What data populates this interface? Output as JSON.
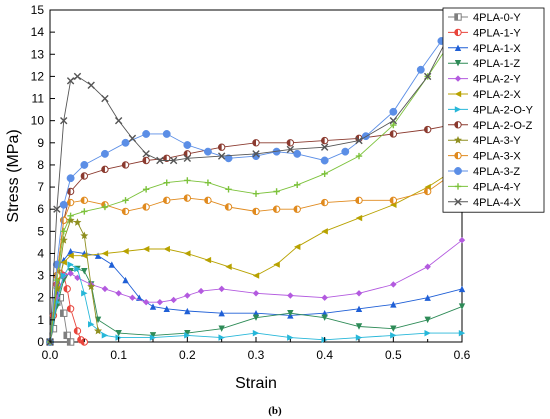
{
  "chart_data": {
    "type": "line",
    "xlabel": "Strain",
    "ylabel": "Stress (MPa)",
    "caption": "(b)",
    "xlim": [
      0,
      0.6
    ],
    "ylim": [
      0,
      15
    ],
    "xticks": [
      0.0,
      0.1,
      0.2,
      0.3,
      0.4,
      0.5,
      0.6
    ],
    "xtick_labels": [
      "0.0",
      "0.1",
      "0.2",
      "0.3",
      "0.4",
      "0.5",
      "0.6"
    ],
    "yticks": [
      0,
      1,
      2,
      3,
      4,
      5,
      6,
      7,
      8,
      9,
      10,
      11,
      12,
      13,
      14,
      15
    ],
    "ytick_labels": [
      "0",
      "1",
      "2",
      "3",
      "4",
      "5",
      "6",
      "7",
      "8",
      "9",
      "10",
      "11",
      "12",
      "13",
      "14",
      "15"
    ],
    "grid": false,
    "legend_position": "top-right",
    "series": [
      {
        "name": "4PLA-0-Y",
        "color": "#7f7f7f",
        "marker": "square-half",
        "x": [
          0,
          0.005,
          0.01,
          0.015,
          0.02,
          0.025,
          0.03
        ],
        "y": [
          0,
          0.6,
          1.8,
          2.0,
          1.3,
          0.3,
          0
        ]
      },
      {
        "name": "4PLA-1-Y",
        "color": "#e8453c",
        "marker": "circle-half",
        "x": [
          0,
          0.005,
          0.01,
          0.015,
          0.02,
          0.025,
          0.03,
          0.04,
          0.045,
          0.05
        ],
        "y": [
          0,
          1.2,
          2.6,
          3.1,
          3.0,
          2.4,
          1.5,
          0.5,
          0.1,
          0
        ]
      },
      {
        "name": "4PLA-1-X",
        "color": "#1f5fd6",
        "marker": "triangle-up",
        "x": [
          0,
          0.01,
          0.02,
          0.03,
          0.05,
          0.07,
          0.09,
          0.11,
          0.13,
          0.15,
          0.17,
          0.2,
          0.25,
          0.3,
          0.35,
          0.4,
          0.45,
          0.5,
          0.55,
          0.6
        ],
        "y": [
          0,
          2.2,
          3.7,
          4.1,
          4.0,
          3.9,
          3.5,
          2.8,
          2.0,
          1.6,
          1.5,
          1.4,
          1.3,
          1.3,
          1.2,
          1.3,
          1.5,
          1.7,
          2.0,
          2.4
        ]
      },
      {
        "name": "4PLA-1-Z",
        "color": "#2e8b57",
        "marker": "triangle-down",
        "x": [
          0,
          0.01,
          0.02,
          0.03,
          0.04,
          0.05,
          0.06,
          0.07,
          0.1,
          0.15,
          0.2,
          0.25,
          0.3,
          0.35,
          0.4,
          0.45,
          0.5,
          0.55,
          0.6
        ],
        "y": [
          0,
          1.6,
          2.8,
          3.2,
          3.3,
          3.2,
          2.6,
          1.0,
          0.4,
          0.3,
          0.4,
          0.6,
          1.1,
          1.3,
          1.1,
          0.7,
          0.6,
          1.0,
          1.6
        ]
      },
      {
        "name": "4PLA-2-Y",
        "color": "#b35adf",
        "marker": "diamond",
        "x": [
          0,
          0.01,
          0.02,
          0.03,
          0.04,
          0.06,
          0.08,
          0.1,
          0.12,
          0.14,
          0.16,
          0.18,
          0.2,
          0.22,
          0.25,
          0.3,
          0.35,
          0.4,
          0.45,
          0.5,
          0.55,
          0.6
        ],
        "y": [
          0,
          2.0,
          3.0,
          3.1,
          2.9,
          2.6,
          2.4,
          2.2,
          2.0,
          1.8,
          1.8,
          1.9,
          2.1,
          2.3,
          2.4,
          2.2,
          2.1,
          2.0,
          2.2,
          2.6,
          3.4,
          4.6
        ]
      },
      {
        "name": "4PLA-2-X",
        "color": "#b8a200",
        "marker": "triangle-left",
        "x": [
          0,
          0.01,
          0.02,
          0.03,
          0.05,
          0.08,
          0.11,
          0.14,
          0.17,
          0.2,
          0.23,
          0.26,
          0.3,
          0.33,
          0.36,
          0.4,
          0.45,
          0.5,
          0.55,
          0.6
        ],
        "y": [
          0,
          2.4,
          3.6,
          3.9,
          3.9,
          4.0,
          4.1,
          4.2,
          4.2,
          4.0,
          3.7,
          3.4,
          3.0,
          3.5,
          4.3,
          5.0,
          5.6,
          6.2,
          7.0,
          8.0
        ]
      },
      {
        "name": "4PLA-2-O-Y",
        "color": "#27b7d9",
        "marker": "triangle-right",
        "x": [
          0,
          0.01,
          0.02,
          0.03,
          0.04,
          0.05,
          0.06,
          0.08,
          0.1,
          0.15,
          0.2,
          0.25,
          0.3,
          0.35,
          0.4,
          0.45,
          0.5,
          0.55,
          0.6
        ],
        "y": [
          0,
          1.8,
          3.0,
          3.5,
          3.3,
          2.2,
          0.8,
          0.3,
          0.2,
          0.2,
          0.3,
          0.2,
          0.4,
          0.2,
          0.1,
          0.2,
          0.3,
          0.4,
          0.4
        ]
      },
      {
        "name": "4PLA-2-O-Z",
        "color": "#8b3a2f",
        "marker": "circle-half",
        "x": [
          0,
          0.01,
          0.02,
          0.03,
          0.05,
          0.08,
          0.11,
          0.14,
          0.17,
          0.2,
          0.25,
          0.3,
          0.35,
          0.4,
          0.45,
          0.5,
          0.55,
          0.6
        ],
        "y": [
          0,
          3.0,
          5.5,
          6.8,
          7.5,
          7.8,
          8.0,
          8.2,
          8.3,
          8.5,
          8.8,
          9.0,
          9.0,
          9.1,
          9.2,
          9.4,
          9.6,
          9.9
        ]
      },
      {
        "name": "4PLA-3-Y",
        "color": "#8f8f20",
        "marker": "star",
        "x": [
          0,
          0.01,
          0.02,
          0.03,
          0.04,
          0.05,
          0.06,
          0.07
        ],
        "y": [
          0,
          2.4,
          4.6,
          5.5,
          5.4,
          4.8,
          2.5,
          0.5
        ]
      },
      {
        "name": "4PLA-3-X",
        "color": "#e08a1e",
        "marker": "circle-half",
        "x": [
          0,
          0.01,
          0.02,
          0.03,
          0.05,
          0.08,
          0.11,
          0.14,
          0.17,
          0.2,
          0.23,
          0.26,
          0.3,
          0.33,
          0.36,
          0.4,
          0.45,
          0.5,
          0.55,
          0.6
        ],
        "y": [
          0,
          3.0,
          5.5,
          6.3,
          6.4,
          6.2,
          5.9,
          6.1,
          6.4,
          6.5,
          6.4,
          6.1,
          5.9,
          6.0,
          6.0,
          6.3,
          6.4,
          6.4,
          6.8,
          7.9
        ]
      },
      {
        "name": "4PLA-3-Z",
        "color": "#5b8ee6",
        "marker": "circle",
        "x": [
          0,
          0.01,
          0.02,
          0.03,
          0.05,
          0.08,
          0.11,
          0.14,
          0.17,
          0.2,
          0.23,
          0.26,
          0.3,
          0.33,
          0.36,
          0.4,
          0.43,
          0.46,
          0.5,
          0.54,
          0.57
        ],
        "y": [
          0,
          3.5,
          6.2,
          7.4,
          8.0,
          8.5,
          9.0,
          9.4,
          9.4,
          8.9,
          8.6,
          8.3,
          8.4,
          8.6,
          8.5,
          8.2,
          8.6,
          9.3,
          10.4,
          12.3,
          13.6
        ]
      },
      {
        "name": "4PLA-4-Y",
        "color": "#7cc23b",
        "marker": "plus",
        "x": [
          0,
          0.01,
          0.02,
          0.03,
          0.05,
          0.08,
          0.11,
          0.14,
          0.17,
          0.2,
          0.23,
          0.26,
          0.3,
          0.33,
          0.36,
          0.4,
          0.45,
          0.5,
          0.55,
          0.58
        ],
        "y": [
          0,
          2.8,
          5.0,
          5.7,
          5.9,
          6.1,
          6.4,
          6.9,
          7.2,
          7.3,
          7.2,
          6.9,
          6.7,
          6.8,
          7.1,
          7.6,
          8.4,
          9.8,
          12.0,
          13.4
        ]
      },
      {
        "name": "4PLA-4-X",
        "color": "#555555",
        "marker": "x",
        "x": [
          0,
          0.01,
          0.02,
          0.03,
          0.04,
          0.06,
          0.08,
          0.1,
          0.12,
          0.14,
          0.16,
          0.18,
          0.2,
          0.25,
          0.3,
          0.35,
          0.4,
          0.45,
          0.5,
          0.55,
          0.58
        ],
        "y": [
          0,
          6.0,
          10.0,
          11.8,
          12.0,
          11.6,
          11.0,
          10.0,
          9.2,
          8.5,
          8.2,
          8.2,
          8.3,
          8.4,
          8.5,
          8.7,
          8.8,
          9.1,
          10.0,
          12.0,
          13.8
        ]
      }
    ]
  }
}
